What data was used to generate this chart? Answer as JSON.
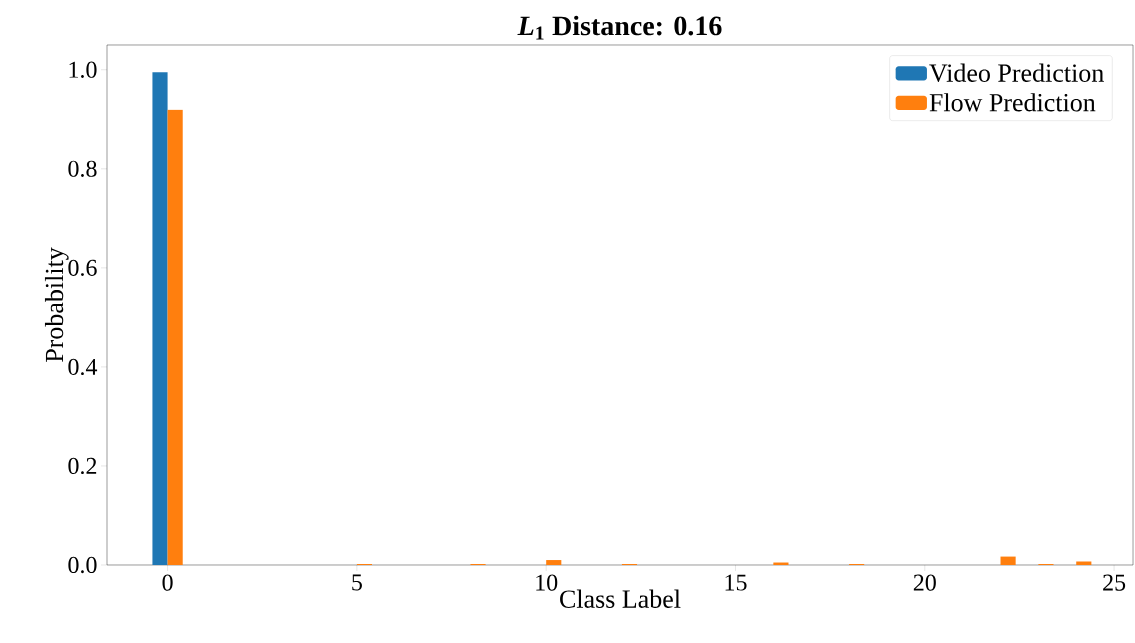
{
  "chart_data": {
    "type": "bar",
    "title": "*L*$_{1}$ Distance: 0.16",
    "xlabel": "Class Label",
    "ylabel": "Probability",
    "x": [
      0,
      1,
      2,
      3,
      4,
      5,
      6,
      7,
      8,
      9,
      10,
      11,
      12,
      13,
      14,
      15,
      16,
      17,
      18,
      19,
      20,
      21,
      22,
      23,
      24
    ],
    "series": [
      {
        "name": "Video Prediction",
        "color": "#1f77b4",
        "values": [
          0.995,
          0,
          0,
          0,
          0,
          0,
          0,
          0,
          0,
          0,
          0,
          0,
          0,
          0,
          0,
          0,
          0,
          0,
          0,
          0,
          0,
          0,
          0,
          0,
          0
        ]
      },
      {
        "name": "Flow Prediction",
        "color": "#ff7f0e",
        "values": [
          0.919,
          0,
          0,
          0,
          0,
          0.002,
          0,
          0,
          0.002,
          0,
          0.01,
          0,
          0.002,
          0,
          0,
          0,
          0.005,
          0,
          0.002,
          0,
          0,
          0,
          0.017,
          0.002,
          0.007
        ]
      }
    ],
    "xlim": [
      -1.6,
      25.5
    ],
    "ylim": [
      0,
      1.05
    ],
    "xticks": [
      0,
      5,
      10,
      15,
      20,
      25
    ],
    "yticks": [
      {
        "value": 0,
        "label": "0.0"
      },
      {
        "value": 0.2,
        "label": "0.2"
      },
      {
        "value": 0.4,
        "label": "0.4"
      },
      {
        "value": 0.6,
        "label": "0.6"
      },
      {
        "value": 0.8,
        "label": "0.8"
      },
      {
        "value": 1.0,
        "label": "1.0"
      }
    ],
    "legend": "top right",
    "grid": false
  }
}
